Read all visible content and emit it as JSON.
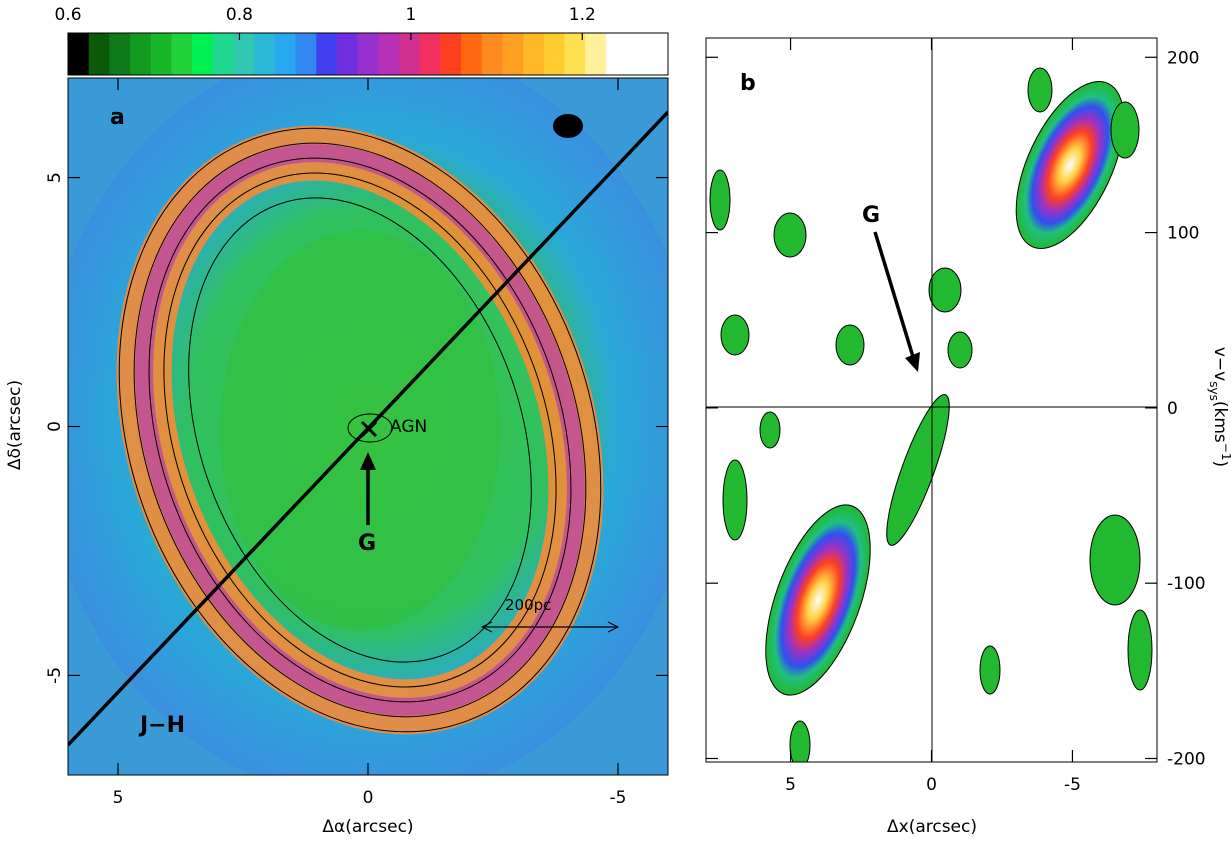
{
  "colorbar": {
    "lim": [
      0.6,
      1.3
    ],
    "ticks": [
      0.6,
      0.8,
      1,
      1.2
    ],
    "colors": [
      "#000000",
      "#0a5a0a",
      "#0f7a1a",
      "#139a20",
      "#19b82a",
      "#22d23a",
      "#00f050",
      "#20d890",
      "#30c8b0",
      "#2ab8d8",
      "#28a8f0",
      "#3088f0",
      "#4040f0",
      "#7030e0",
      "#9830d0",
      "#b830b8",
      "#d03090",
      "#f03060",
      "#ff4020",
      "#ff6a10",
      "#ff8a20",
      "#ffa020",
      "#ffb828",
      "#ffcc30",
      "#ffe050",
      "#fff09a",
      "#ffffff",
      "#ffffff",
      "#ffffff"
    ]
  },
  "panel_a": {
    "label": "a",
    "xlabel": "Δα(arcsec)",
    "ylabel": "Δδ(arcsec)",
    "xlim": [
      6,
      -6
    ],
    "ylim": [
      -7,
      7
    ],
    "xticks": [
      5,
      0,
      -5
    ],
    "yticks": [
      -5,
      0,
      5
    ],
    "annotations": [
      "AGN",
      "G",
      "200pc",
      "J−H"
    ]
  },
  "panel_b": {
    "label": "b",
    "xlabel": "Δx(arcsec)",
    "ylabel": [
      "v−v",
      "sys",
      "(kms",
      "−1",
      ")"
    ],
    "xlim": [
      8,
      -8
    ],
    "ylim": [
      -202,
      211
    ],
    "xticks": [
      5,
      0,
      -5
    ],
    "yticks": [
      -200,
      -100,
      0,
      100,
      200
    ],
    "annotations": [
      "G"
    ]
  }
}
